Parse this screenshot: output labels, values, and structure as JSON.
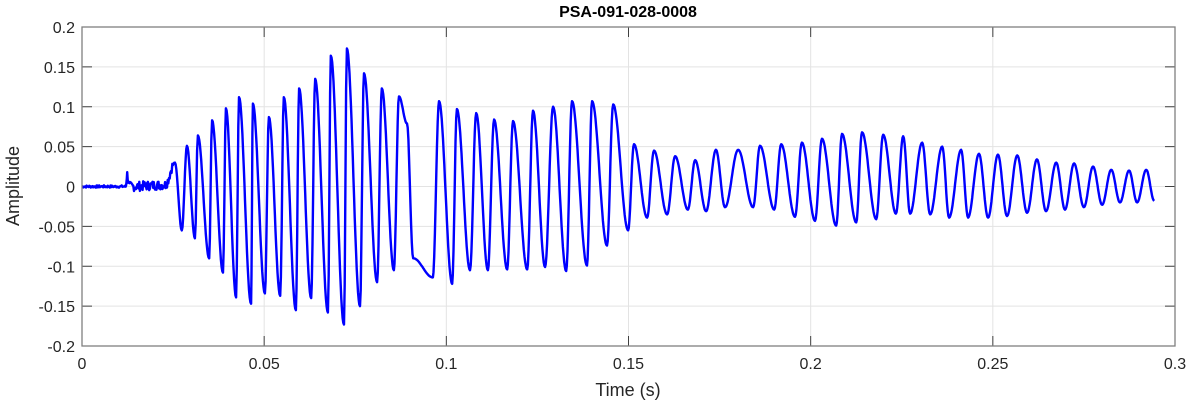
{
  "chart_data": {
    "type": "line",
    "title": "PSA-091-028-0008",
    "xlabel": "Time (s)",
    "ylabel": "Amplitude",
    "xlim": [
      0,
      0.3
    ],
    "ylim": [
      -0.2,
      0.2
    ],
    "xticks": [
      "0",
      "0.05",
      "0.1",
      "0.15",
      "0.2",
      "0.25",
      "0.3"
    ],
    "yticks": [
      "-0.2",
      "-0.15",
      "-0.1",
      "-0.05",
      "0",
      "0.05",
      "0.1",
      "0.15",
      "0.2"
    ],
    "grid": true,
    "line_color": "#0000FF",
    "series": [
      {
        "x": [
          0,
          0.012,
          0.0124,
          0.013,
          0.0228,
          0.0255,
          0.0274,
          0.0288,
          0.031,
          0.0318,
          0.0349,
          0.0357,
          0.0387,
          0.0395,
          0.0423,
          0.0431,
          0.0464,
          0.0469,
          0.0502,
          0.0513,
          0.0544,
          0.0554,
          0.0587,
          0.0596,
          0.0629,
          0.064,
          0.0675,
          0.0683,
          0.0719,
          0.0727,
          0.0763,
          0.0774,
          0.081,
          0.0823,
          0.0856,
          0.087,
          0.0892,
          0.0909,
          0.0963,
          0.098,
          0.1016,
          0.1029,
          0.1065,
          0.1082,
          0.1114,
          0.1131,
          0.1167,
          0.1183,
          0.1222,
          0.1238,
          0.1271,
          0.1293,
          0.1329,
          0.1345,
          0.1386,
          0.14,
          0.1441,
          0.1458,
          0.1499,
          0.1515,
          0.1551,
          0.157,
          0.1606,
          0.1628,
          0.1663,
          0.1683,
          0.1713,
          0.174,
          0.1765,
          0.1801,
          0.1842,
          0.1861,
          0.19,
          0.1919,
          0.1957,
          0.1976,
          0.2012,
          0.2031,
          0.207,
          0.2086,
          0.2125,
          0.2141,
          0.218,
          0.2199,
          0.2234,
          0.2254,
          0.2273,
          0.2306,
          0.2328,
          0.2361,
          0.238,
          0.2413,
          0.2432,
          0.2462,
          0.2487,
          0.2514,
          0.2539,
          0.2567,
          0.2594,
          0.2621,
          0.2646,
          0.2674,
          0.2698,
          0.2723,
          0.275,
          0.2775,
          0.28,
          0.2825,
          0.2849,
          0.2874,
          0.2896,
          0.2921,
          0.2943
        ],
        "y": [
          0,
          0,
          0.015,
          0,
          0.002,
          0.03,
          -0.055,
          0.051,
          -0.065,
          0.064,
          -0.09,
          0.083,
          -0.108,
          0.098,
          -0.139,
          0.112,
          -0.147,
          0.104,
          -0.134,
          0.087,
          -0.137,
          0.112,
          -0.155,
          0.123,
          -0.14,
          0.135,
          -0.158,
          0.164,
          -0.173,
          0.173,
          -0.15,
          0.142,
          -0.12,
          0.123,
          -0.105,
          0.113,
          0.079,
          -0.09,
          -0.114,
          0.107,
          -0.122,
          0.097,
          -0.105,
          0.092,
          -0.105,
          0.084,
          -0.104,
          0.082,
          -0.104,
          0.095,
          -0.101,
          0.1,
          -0.106,
          0.107,
          -0.099,
          0.107,
          -0.074,
          0.103,
          -0.055,
          0.053,
          -0.039,
          0.045,
          -0.035,
          0.038,
          -0.029,
          0.033,
          -0.031,
          0.046,
          -0.026,
          0.046,
          -0.026,
          0.051,
          -0.029,
          0.053,
          -0.038,
          0.055,
          -0.043,
          0.06,
          -0.049,
          0.066,
          -0.045,
          0.068,
          -0.041,
          0.065,
          -0.034,
          0.063,
          -0.034,
          0.055,
          -0.035,
          0.05,
          -0.039,
          0.046,
          -0.039,
          0.041,
          -0.039,
          0.04,
          -0.037,
          0.039,
          -0.033,
          0.034,
          -0.031,
          0.03,
          -0.029,
          0.029,
          -0.026,
          0.025,
          -0.023,
          0.021,
          -0.02,
          0.02,
          -0.02,
          0.021,
          -0.018
        ]
      }
    ]
  }
}
